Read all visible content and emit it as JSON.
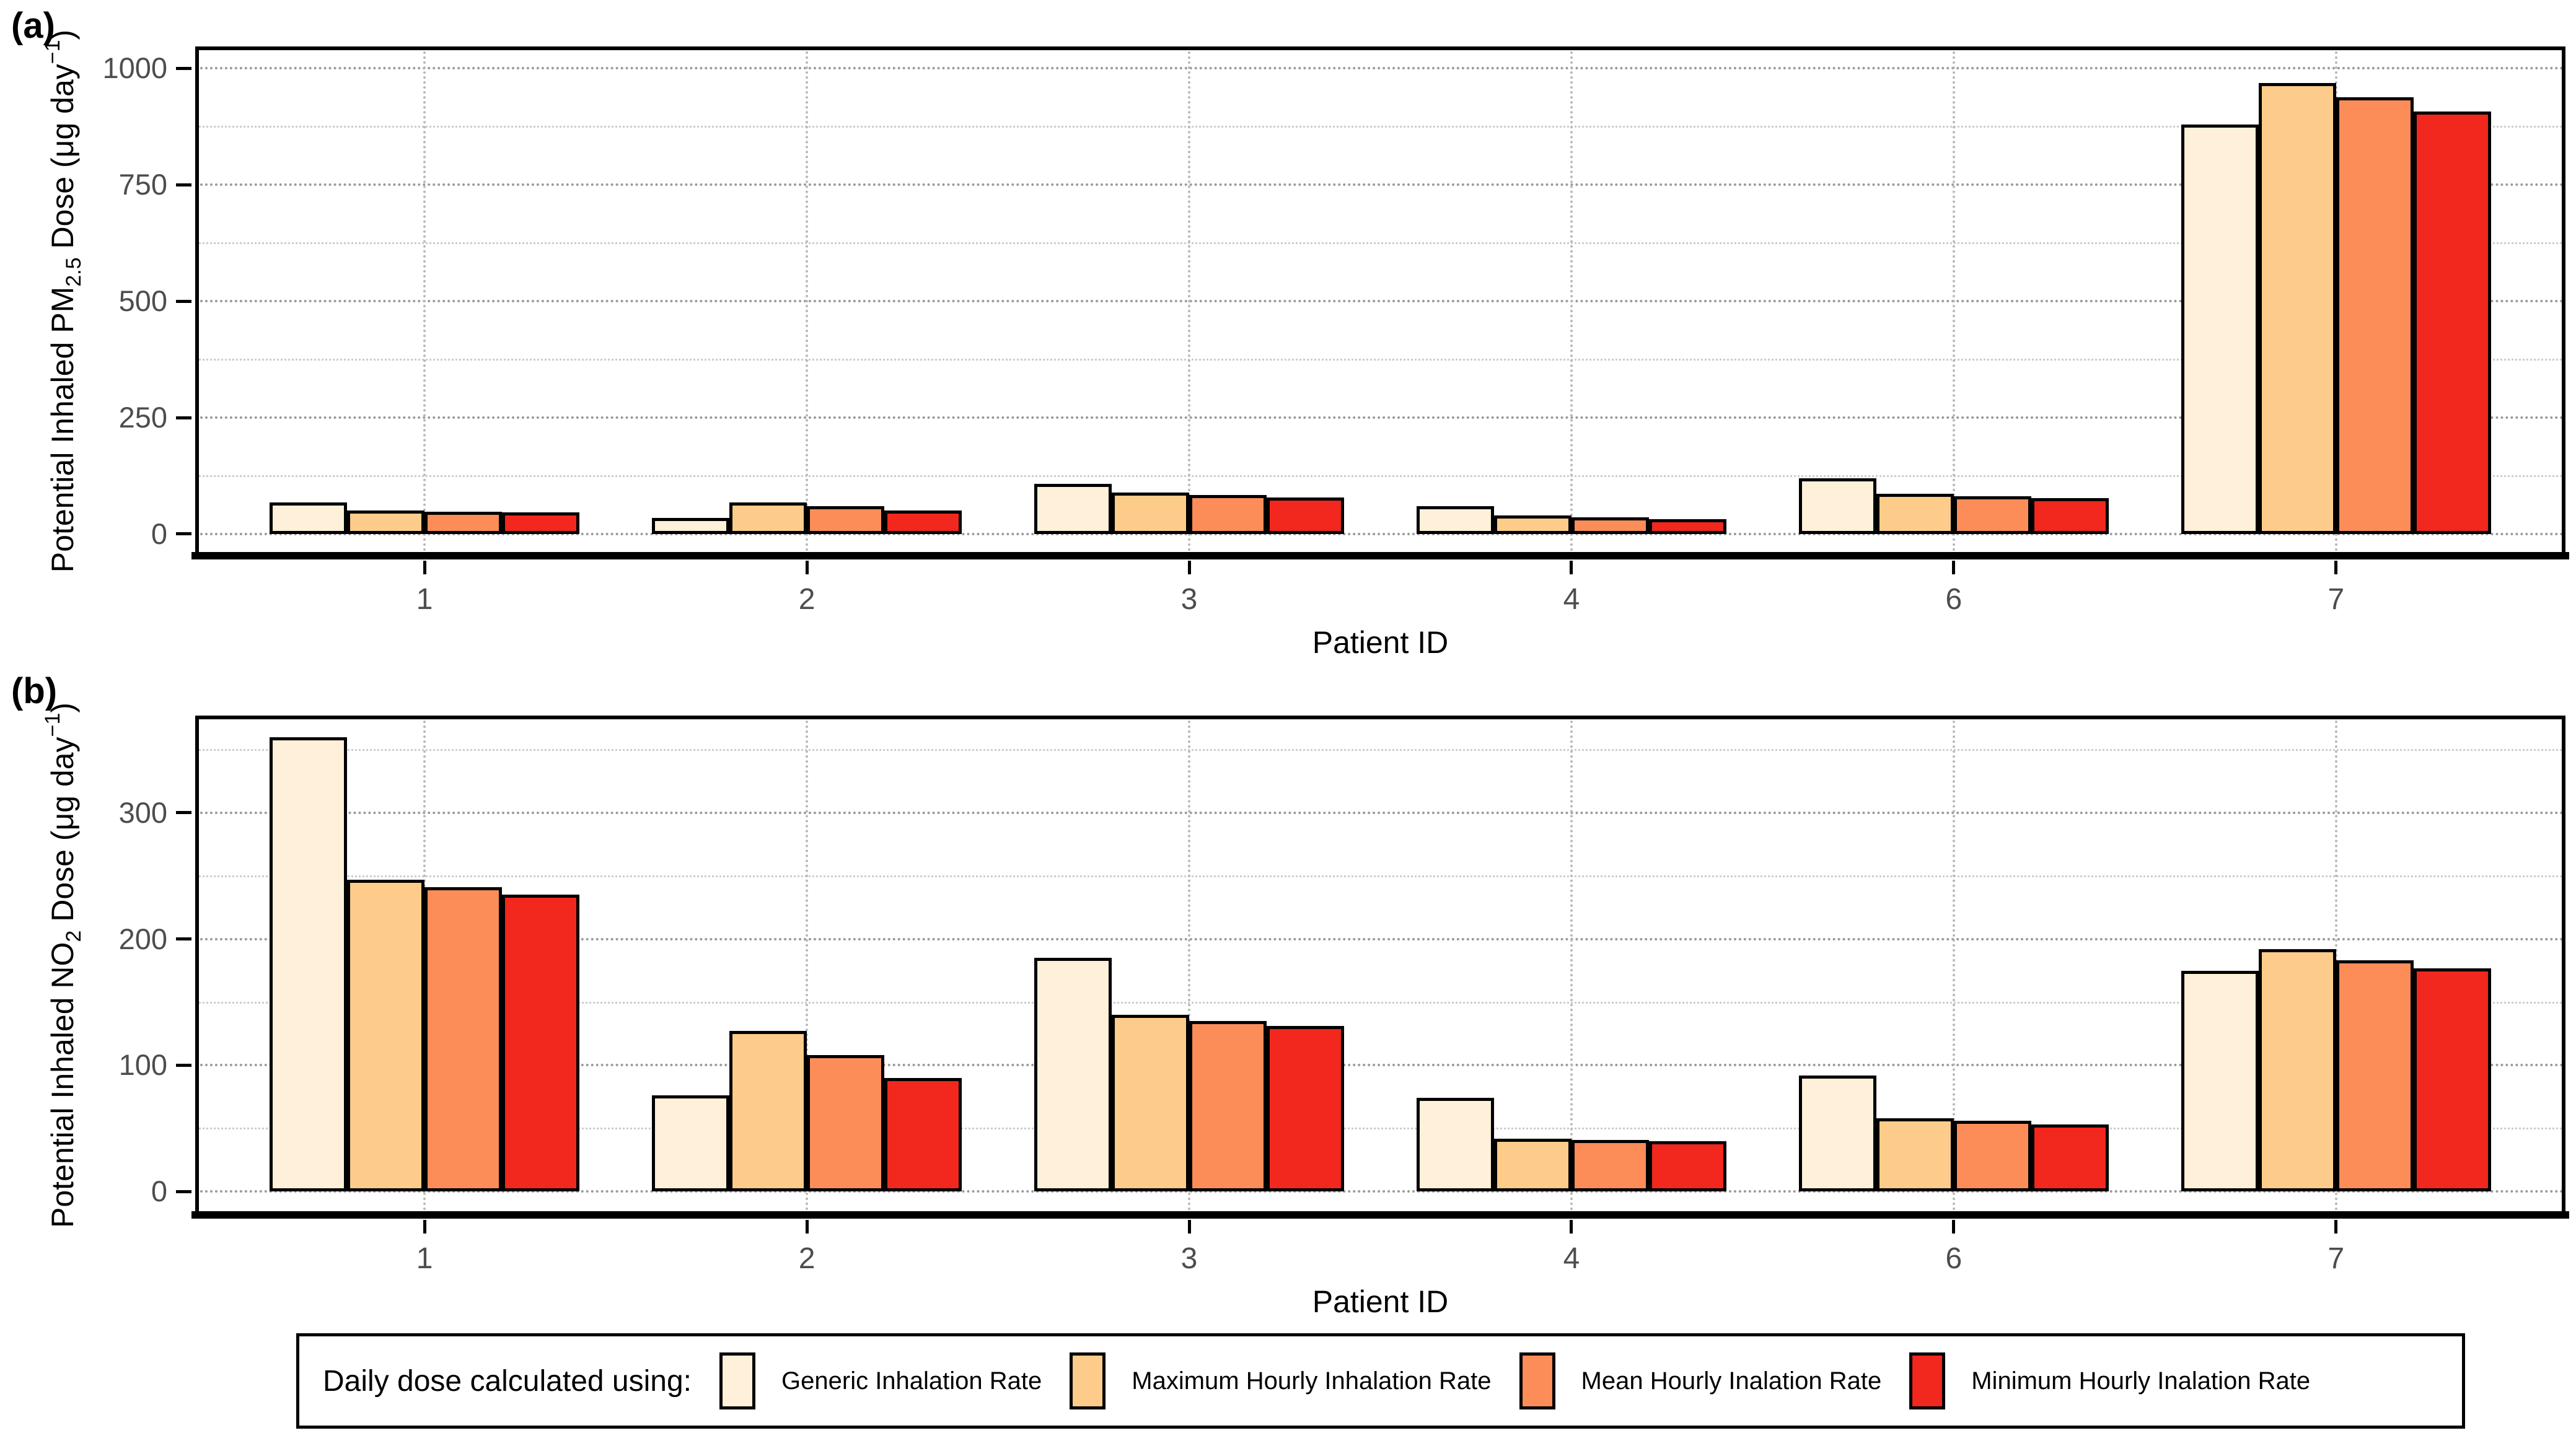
{
  "panels": [
    {
      "id": "a",
      "tag": "(a)",
      "xlabel": "Patient ID",
      "ylabel": {
        "pre": "Potential Inhaled PM",
        "sub": "2.5",
        "mid": " Dose (μg day",
        "sup": "−1",
        "post": ")"
      },
      "axis": {
        "yticks": [
          0,
          250,
          500,
          750,
          1000
        ],
        "minor_yticks": [
          125,
          375,
          625,
          875
        ],
        "ylim_display": [
          -48,
          1047
        ],
        "tick_label_color": "#4d4d4d"
      }
    },
    {
      "id": "b",
      "tag": "(b)",
      "xlabel": "Patient ID",
      "ylabel": {
        "pre": "Potential Inhaled NO",
        "sub": "2",
        "mid": " Dose (μg day",
        "sup": "−1",
        "post": ")"
      },
      "axis": {
        "yticks": [
          0,
          100,
          200,
          300
        ],
        "minor_yticks": [
          50,
          150,
          250,
          350
        ],
        "ylim_display": [
          -19,
          377
        ],
        "tick_label_color": "#4d4d4d"
      }
    }
  ],
  "chart_data": [
    {
      "type": "bar",
      "panel": "a",
      "title": "",
      "xlabel": "Patient ID",
      "ylabel": "Potential Inhaled PM2.5 Dose (μg day−1)",
      "categories": [
        "1",
        "2",
        "3",
        "4",
        "6",
        "7"
      ],
      "series": [
        {
          "name": "Generic Inhalation Rate",
          "color": "#FEF0D9",
          "values": [
            68,
            35,
            108,
            60,
            120,
            880
          ]
        },
        {
          "name": "Maximum Hourly Inhalation Rate",
          "color": "#FDCC8A",
          "values": [
            50,
            68,
            89,
            40,
            86,
            968
          ]
        },
        {
          "name": "Mean Hourly Inalation Rate",
          "color": "#FC8D59",
          "values": [
            48,
            60,
            84,
            36,
            81,
            938
          ]
        },
        {
          "name": "Minimum Hourly Inalation Rate",
          "color": "#F2271D",
          "values": [
            46,
            50,
            79,
            32,
            77,
            908
          ]
        }
      ],
      "ylim": [
        0,
        1000
      ],
      "yticks": [
        0,
        250,
        500,
        750,
        1000
      ],
      "grid": "dotted gray, major and minor horizontal, major vertical at category centers",
      "legend_position": "bottom"
    },
    {
      "type": "bar",
      "panel": "b",
      "title": "",
      "xlabel": "Patient ID",
      "ylabel": "Potential Inhaled NO2 Dose (μg day−1)",
      "categories": [
        "1",
        "2",
        "3",
        "4",
        "6",
        "7"
      ],
      "series": [
        {
          "name": "Generic Inhalation Rate",
          "color": "#FEF0D9",
          "values": [
            360,
            76,
            185,
            74,
            92,
            175
          ]
        },
        {
          "name": "Maximum Hourly Inhalation Rate",
          "color": "#FDCC8A",
          "values": [
            247,
            127,
            140,
            42,
            58,
            192
          ]
        },
        {
          "name": "Mean Hourly Inalation Rate",
          "color": "#FC8D59",
          "values": [
            241,
            108,
            135,
            41,
            56,
            183
          ]
        },
        {
          "name": "Minimum Hourly Inalation Rate",
          "color": "#F2271D",
          "values": [
            235,
            90,
            131,
            40,
            53,
            177
          ]
        }
      ],
      "ylim": [
        0,
        360
      ],
      "yticks": [
        0,
        100,
        200,
        300
      ],
      "grid": "dotted gray, major and minor horizontal, major vertical at category centers",
      "legend_position": "bottom"
    }
  ],
  "legend": {
    "title": "Daily dose calculated using:",
    "items": [
      {
        "label": "Generic Inhalation Rate",
        "color": "#FEF0D9"
      },
      {
        "label": "Maximum Hourly Inhalation Rate",
        "color": "#FDCC8A"
      },
      {
        "label": "Mean Hourly Inalation Rate",
        "color": "#FC8D59"
      },
      {
        "label": "Minimum Hourly Inalation Rate",
        "color": "#F2271D"
      }
    ]
  }
}
